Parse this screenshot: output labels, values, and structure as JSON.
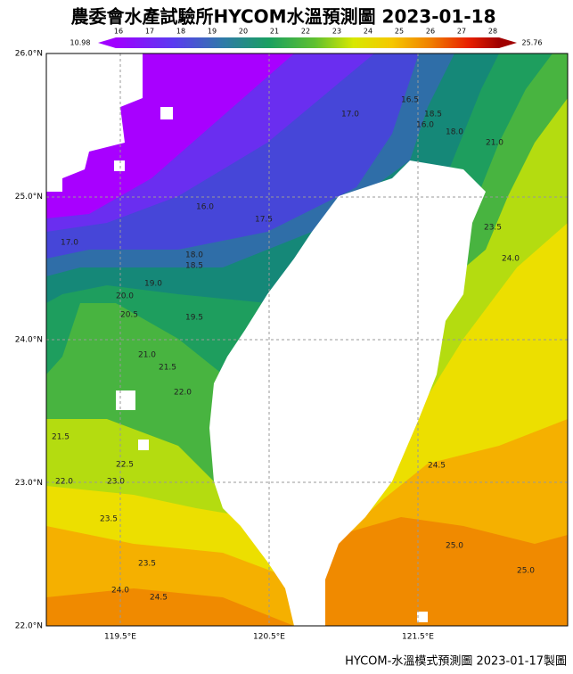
{
  "header": {
    "title": "農委會水產試驗所HYCOM水溫預測圖 2023-01-18"
  },
  "colorbar": {
    "min_label": "10.98",
    "max_label": "25.76",
    "ticks": [
      "16",
      "17",
      "18",
      "19",
      "20",
      "21",
      "22",
      "23",
      "24",
      "25",
      "26",
      "27",
      "28"
    ]
  },
  "axes": {
    "lat_labels": [
      "26.0°N",
      "25.0°N",
      "24.0°N",
      "23.0°N",
      "22.0°N"
    ],
    "lon_labels": [
      "119.5°E",
      "120.5°E",
      "121.5°E"
    ]
  },
  "contour_labels": [
    "17.0",
    "16.5",
    "16.0",
    "18.0",
    "18.5",
    "21.0",
    "23.5",
    "24.0",
    "16.0",
    "17.5",
    "17.0",
    "18.0",
    "18.5",
    "19.0",
    "20.0",
    "20.5",
    "19.5",
    "21.0",
    "21.5",
    "22.0",
    "21.5",
    "22.5",
    "22.0",
    "23.0",
    "23.5",
    "23.5",
    "24.0",
    "24.5",
    "24.5",
    "25.0",
    "25.0"
  ],
  "footer": "HYCOM-水溫模式預測圖 2023-01-17製圖"
}
